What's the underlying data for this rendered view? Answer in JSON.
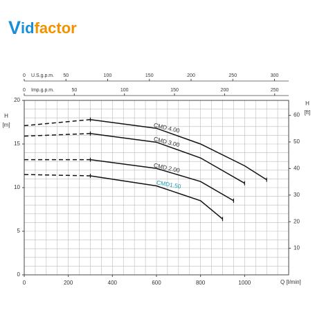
{
  "logo": [
    "V",
    "id",
    "factor"
  ],
  "chart_data": {
    "type": "line",
    "x_label": "Q [l/min]",
    "y_label": [
      "H",
      "[m]"
    ],
    "y2_label": [
      "H",
      "[ft]"
    ],
    "xlim": [
      0,
      1200
    ],
    "xticks": [
      0,
      200,
      400,
      600,
      800,
      1000
    ],
    "ylim": [
      0,
      20
    ],
    "yticks": [
      0,
      5,
      10,
      15,
      20
    ],
    "y2lim": [
      0,
      65.62
    ],
    "y2ticks": [
      10,
      20,
      30,
      40,
      50,
      60
    ],
    "top_axes": [
      {
        "label": "U.S.g.p.m.",
        "lim": [
          0,
          317.0
        ],
        "ticks": [
          0,
          50,
          100,
          150,
          200,
          250,
          300
        ]
      },
      {
        "label": "Imp.g.p.m.",
        "lim": [
          0,
          264.0
        ],
        "ticks": [
          0,
          50,
          100,
          150,
          200,
          250
        ]
      }
    ],
    "grid": true,
    "xgrid": [
      0,
      50,
      100,
      150,
      200,
      250,
      300,
      350,
      400,
      450,
      500,
      550,
      600,
      650,
      700,
      750,
      800,
      850,
      900,
      950,
      1000,
      1050,
      1100,
      1150,
      1200
    ],
    "ygrid": [
      0,
      1,
      2,
      3,
      4,
      5,
      6,
      7,
      8,
      9,
      10,
      11,
      12,
      13,
      14,
      15,
      16,
      17,
      18,
      19,
      20
    ],
    "series": [
      {
        "name": "CMD 4.00",
        "color": "#111111",
        "label_color": "#333333",
        "x": [
          0,
          300,
          600,
          800,
          1000,
          1100
        ],
        "values": [
          17.1,
          17.8,
          16.8,
          15.0,
          12.5,
          10.9
        ]
      },
      {
        "name": "CMD 3.00",
        "color": "#111111",
        "label_color": "#333333",
        "x": [
          0,
          300,
          600,
          800,
          1000
        ],
        "values": [
          15.9,
          16.2,
          15.2,
          13.4,
          10.5
        ]
      },
      {
        "name": "CMD 2.00",
        "color": "#111111",
        "label_color": "#333333",
        "x": [
          0,
          300,
          600,
          800,
          950
        ],
        "values": [
          13.2,
          13.2,
          12.2,
          10.7,
          8.5
        ]
      },
      {
        "name": "CMD1.50",
        "color": "#111111",
        "label_color": "#1b9bb5",
        "x": [
          0,
          300,
          600,
          800,
          900
        ],
        "values": [
          11.5,
          11.35,
          10.2,
          8.5,
          6.4
        ]
      }
    ]
  }
}
